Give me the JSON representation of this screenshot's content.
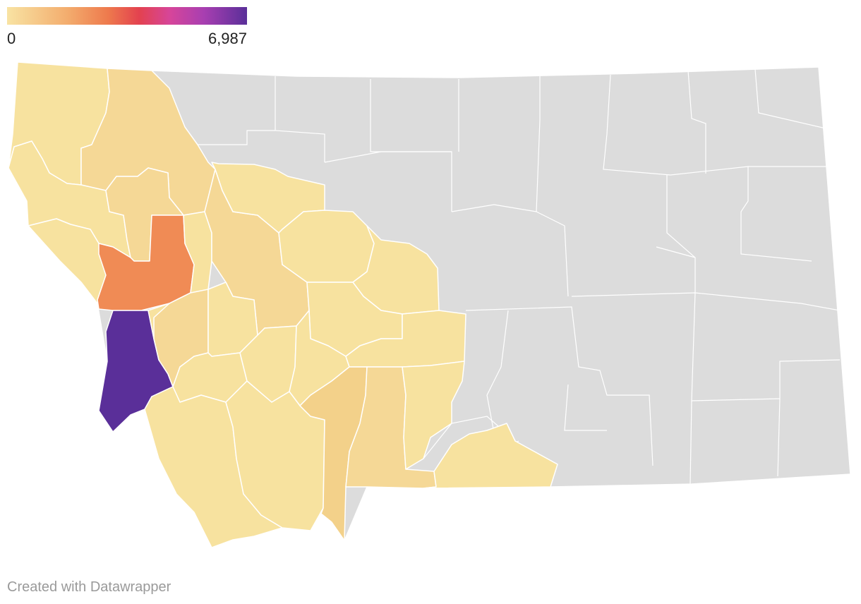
{
  "legend": {
    "min_label": "0",
    "max_label": "6,987",
    "gradient_colors": [
      "#f8e3a3",
      "#f4c27c",
      "#f0874e",
      "#e3424f",
      "#d3419c",
      "#a83fb1",
      "#5a2f99"
    ]
  },
  "colors": {
    "no_data": "#dcdcdc",
    "border": "#ffffff",
    "lightest": "#f7e29f",
    "light": "#f5d896",
    "medium_light": "#f3d18a",
    "orange": "#f08b55",
    "purple": "#5a2f99"
  },
  "map": {
    "region": "Montana counties"
  },
  "footer": {
    "credit": "Created with Datawrapper"
  }
}
